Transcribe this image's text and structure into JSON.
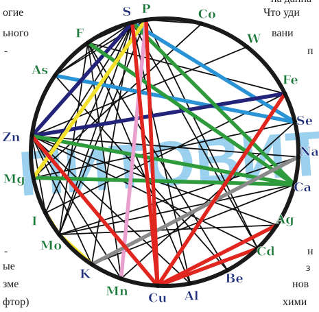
{
  "background_text": {
    "left": [
      "огие",
      "ьного",
      "-",
      "-",
      "ые",
      "зме",
      "фтор)"
    ],
    "right": [
      "Что уди",
      "вани",
      "п",
      "н",
      "з",
      "нов",
      "хими"
    ],
    "top_right": "на данна"
  },
  "watermark": "ПИТОВИТ",
  "elements": [
    {
      "id": "P",
      "label": "P",
      "color": "#1b7a3a"
    },
    {
      "id": "Co",
      "label": "Co",
      "color": "#1b7a3a"
    },
    {
      "id": "W",
      "label": "W",
      "color": "#1b7a3a"
    },
    {
      "id": "Fe",
      "label": "Fe",
      "color": "#1b7a3a"
    },
    {
      "id": "Se",
      "label": "Se",
      "color": "#1f2f7a"
    },
    {
      "id": "Na",
      "label": "Na",
      "color": "#1f2f7a"
    },
    {
      "id": "Ca",
      "label": "Ca",
      "color": "#1f2f7a"
    },
    {
      "id": "Ag",
      "label": "Ag",
      "color": "#1b7a3a"
    },
    {
      "id": "Cd",
      "label": "Cd",
      "color": "#1b7a3a"
    },
    {
      "id": "Be",
      "label": "Be",
      "color": "#1f2f7a"
    },
    {
      "id": "Al",
      "label": "Al",
      "color": "#1f2f7a"
    },
    {
      "id": "Cu",
      "label": "Cu",
      "color": "#1f2f7a"
    },
    {
      "id": "Mn",
      "label": "Mn",
      "color": "#1b7a3a"
    },
    {
      "id": "K",
      "label": "K",
      "color": "#1f2f7a"
    },
    {
      "id": "Mo",
      "label": "Mo",
      "color": "#1b7a3a"
    },
    {
      "id": "I",
      "label": "I",
      "color": "#1b7a3a"
    },
    {
      "id": "Mg",
      "label": "Mg",
      "color": "#1b7a3a"
    },
    {
      "id": "Zn",
      "label": "Zn",
      "color": "#1f2f7a"
    },
    {
      "id": "As",
      "label": "As",
      "color": "#1b7a3a"
    },
    {
      "id": "F",
      "label": "F",
      "color": "#1b7a3a"
    },
    {
      "id": "S",
      "label": "S",
      "color": "#1f2f7a"
    }
  ],
  "thick_links": [
    {
      "from": "As",
      "to": "Se",
      "color": "#2a93d5"
    },
    {
      "from": "S",
      "to": "Se",
      "color": "#2a93d5"
    },
    {
      "from": "Zn",
      "to": "Fe",
      "color": "#23237a"
    },
    {
      "from": "Zn",
      "to": "S",
      "color": "#23237a"
    },
    {
      "from": "F",
      "to": "Ca",
      "color": "#2e9b3c"
    },
    {
      "from": "S",
      "to": "Ca",
      "color": "#2e9b3c"
    },
    {
      "from": "Mg",
      "to": "Ca",
      "color": "#2e9b3c"
    },
    {
      "from": "Zn",
      "to": "Ca",
      "color": "#2e9b3c"
    },
    {
      "from": "Mg",
      "to": "P",
      "color": "#f2e02a"
    },
    {
      "from": "I",
      "to": "Mo",
      "color": "#f2e02a"
    },
    {
      "from": "Mo",
      "to": "K",
      "color": "#f2e02a"
    },
    {
      "from": "Mn",
      "to": "P",
      "color": "#e9a0cf"
    },
    {
      "from": "K",
      "to": "Na",
      "color": "#8a8a8a"
    },
    {
      "from": "Cu",
      "to": "S",
      "color": "#e0261f"
    },
    {
      "from": "Cu",
      "to": "P",
      "color": "#e0261f"
    },
    {
      "from": "Cu",
      "to": "Zn",
      "color": "#e0261f"
    },
    {
      "from": "Cu",
      "to": "Fe",
      "color": "#e0261f"
    },
    {
      "from": "Cu",
      "to": "Ag",
      "color": "#e0261f"
    },
    {
      "from": "Cu",
      "to": "Cd",
      "color": "#e0261f"
    }
  ],
  "thin_links": [
    [
      "S",
      "F"
    ],
    [
      "S",
      "As"
    ],
    [
      "S",
      "I"
    ],
    [
      "S",
      "Mo"
    ],
    [
      "S",
      "K"
    ],
    [
      "S",
      "Mg"
    ],
    [
      "S",
      "Al"
    ],
    [
      "S",
      "Cd"
    ],
    [
      "F",
      "Mo"
    ],
    [
      "F",
      "Fe"
    ],
    [
      "F",
      "Mn"
    ],
    [
      "F",
      "Be"
    ],
    [
      "P",
      "Co"
    ],
    [
      "P",
      "As"
    ],
    [
      "P",
      "Mo"
    ],
    [
      "P",
      "Cd"
    ],
    [
      "Co",
      "Mg"
    ],
    [
      "W",
      "Zn"
    ],
    [
      "Fe",
      "I"
    ],
    [
      "Se",
      "Mn"
    ],
    [
      "Na",
      "Zn"
    ],
    [
      "Na",
      "Mo"
    ],
    [
      "Ca",
      "Mo"
    ],
    [
      "Ca",
      "K"
    ],
    [
      "Ag",
      "Zn"
    ],
    [
      "Ag",
      "Mo"
    ],
    [
      "Cd",
      "Zn"
    ],
    [
      "Be",
      "As"
    ],
    [
      "Al",
      "F"
    ],
    [
      "Al",
      "Zn"
    ],
    [
      "Mn",
      "Zn"
    ],
    [
      "K",
      "Zn"
    ],
    [
      "I",
      "Zn"
    ],
    [
      "Mg",
      "Se"
    ]
  ]
}
